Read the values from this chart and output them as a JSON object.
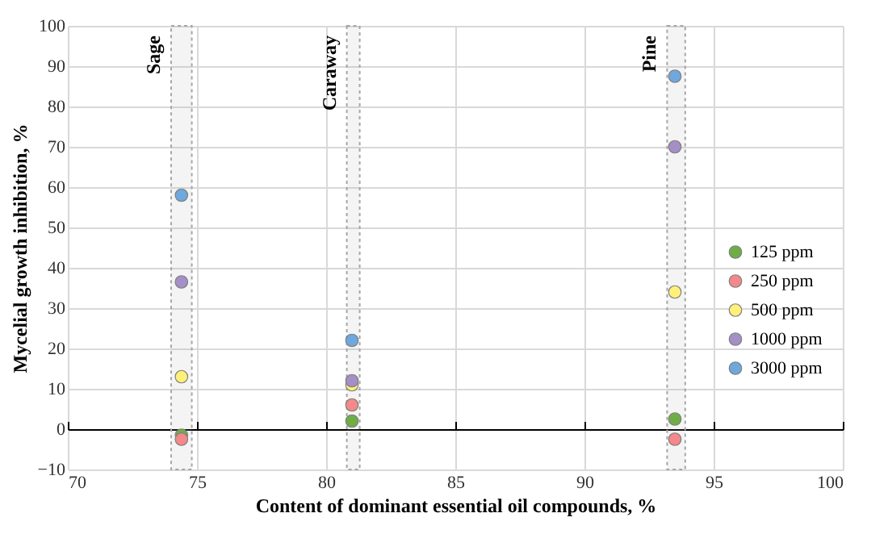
{
  "chart_data": {
    "type": "scatter",
    "xlabel": "Content of dominant essential oil compounds, %",
    "ylabel": "Mycelial growth inhibition, %",
    "xlim": [
      70,
      100
    ],
    "xticks": [
      70,
      75,
      80,
      85,
      90,
      95,
      100
    ],
    "ylim": [
      -10,
      100
    ],
    "yticks": [
      -10,
      0,
      10,
      20,
      30,
      40,
      50,
      60,
      70,
      80,
      90,
      100
    ],
    "grid": true,
    "legend": "bottom right",
    "marker": "circle",
    "bands": [
      {
        "axis": "x",
        "from": 74,
        "to": 74.8,
        "label": "Sage",
        "color": "#a6a6a6"
      },
      {
        "axis": "x",
        "from": 80.8,
        "to": 81.3,
        "label": "Caraway",
        "color": "#a6a6a6"
      },
      {
        "axis": "x",
        "from": 93.2,
        "to": 93.9,
        "label": "Pine",
        "color": "#a6a6a6"
      }
    ],
    "x": [
      74.4,
      81,
      93.5
    ],
    "series": [
      {
        "name": "125 ppm",
        "color": "#70ad47",
        "values": [
          -1.5,
          2,
          2.5
        ]
      },
      {
        "name": "250 ppm",
        "color": "#f4888a",
        "values": [
          -2.5,
          6,
          -2.5
        ]
      },
      {
        "name": "500 ppm",
        "color": "#fff07a",
        "values": [
          13,
          11,
          34
        ]
      },
      {
        "name": "1000 ppm",
        "color": "#a58fc7",
        "values": [
          36.5,
          12,
          70
        ]
      },
      {
        "name": "3000 ppm",
        "color": "#6fa8dc",
        "values": [
          58,
          22,
          87.5
        ]
      }
    ]
  }
}
